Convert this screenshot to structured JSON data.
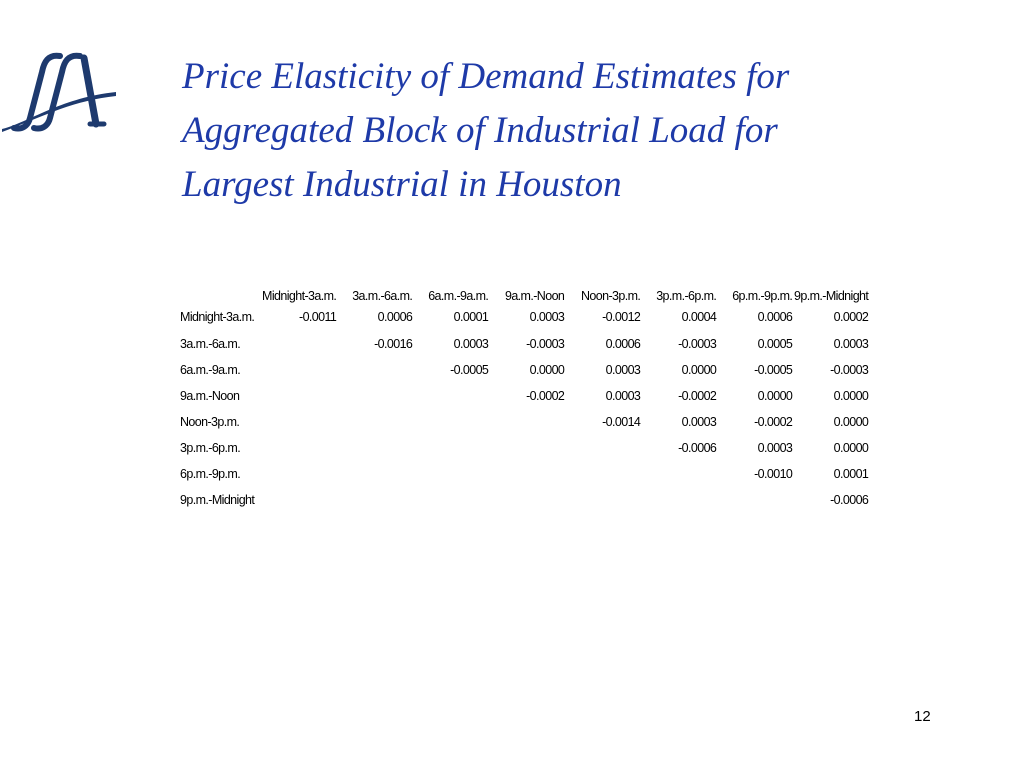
{
  "slide": {
    "title_lines": [
      "Price Elasticity of Demand Estimates for",
      "Aggregated Block of Industrial Load for",
      "Largest Industrial in Houston"
    ],
    "page_number": "12",
    "title_color": "#1e3aa8",
    "logo": {
      "icon": "company-monogram-logo",
      "text": "fA",
      "color": "#1e3a6e"
    }
  },
  "table": {
    "columns": [
      "Midnight-3a.m.",
      "3a.m.-6a.m.",
      "6a.m.-9a.m.",
      "9a.m.-Noon",
      "Noon-3p.m.",
      "3p.m.-6p.m.",
      "6p.m.-9p.m.",
      "9p.m.-Midnight"
    ],
    "rows": [
      {
        "label": "Midnight-3a.m.",
        "values": [
          "-0.0011",
          "0.0006",
          "0.0001",
          "0.0003",
          "-0.0012",
          "0.0004",
          "0.0006",
          "0.0002"
        ]
      },
      {
        "label": "3a.m.-6a.m.",
        "values": [
          "",
          "-0.0016",
          "0.0003",
          "-0.0003",
          "0.0006",
          "-0.0003",
          "0.0005",
          "0.0003"
        ]
      },
      {
        "label": "6a.m.-9a.m.",
        "values": [
          "",
          "",
          "-0.0005",
          "0.0000",
          "0.0003",
          "0.0000",
          "-0.0005",
          "-0.0003"
        ]
      },
      {
        "label": "9a.m.-Noon",
        "values": [
          "",
          "",
          "",
          "-0.0002",
          "0.0003",
          "-0.0002",
          "0.0000",
          "0.0000"
        ]
      },
      {
        "label": "Noon-3p.m.",
        "values": [
          "",
          "",
          "",
          "",
          "-0.0014",
          "0.0003",
          "-0.0002",
          "0.0000"
        ]
      },
      {
        "label": "3p.m.-6p.m.",
        "values": [
          "",
          "",
          "",
          "",
          "",
          "-0.0006",
          "0.0003",
          "0.0000"
        ]
      },
      {
        "label": "6p.m.-9p.m.",
        "values": [
          "",
          "",
          "",
          "",
          "",
          "",
          "-0.0010",
          "0.0001"
        ]
      },
      {
        "label": "9p.m.-Midnight",
        "values": [
          "",
          "",
          "",
          "",
          "",
          "",
          "",
          "-0.0006"
        ]
      }
    ]
  }
}
